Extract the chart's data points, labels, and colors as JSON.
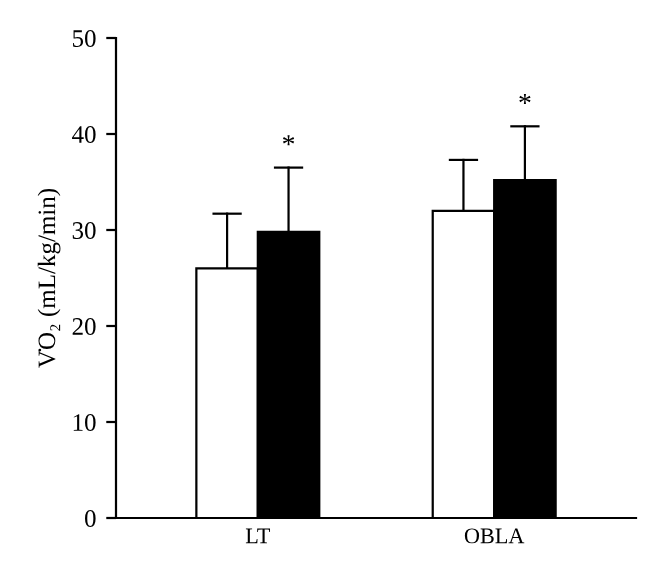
{
  "chart_data": {
    "type": "bar",
    "ylabel": "V̇O₂ (mL/kg/min)",
    "categories": [
      "LT",
      "OBLA"
    ],
    "series": [
      {
        "color": "#ffffff",
        "values": [
          26.0,
          32.0
        ],
        "errors": [
          [
            26.0,
            31.7
          ],
          [
            32.0,
            37.3
          ]
        ]
      },
      {
        "color": "#000000",
        "values": [
          29.8,
          35.2
        ],
        "errors": [
          [
            29.8,
            36.5
          ],
          [
            35.2,
            40.8
          ]
        ]
      }
    ],
    "annotations": [
      "*",
      "*"
    ],
    "ylim": [
      0,
      50
    ],
    "yticks": [
      0,
      10,
      20,
      30,
      40,
      50
    ],
    "grid": false,
    "legend": false
  }
}
